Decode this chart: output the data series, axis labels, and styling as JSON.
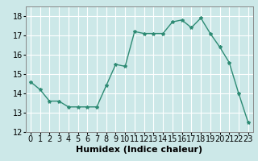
{
  "x": [
    0,
    1,
    2,
    3,
    4,
    5,
    6,
    7,
    8,
    9,
    10,
    11,
    12,
    13,
    14,
    15,
    16,
    17,
    18,
    19,
    20,
    21,
    22,
    23
  ],
  "y": [
    14.6,
    14.2,
    13.6,
    13.6,
    13.3,
    13.3,
    13.3,
    13.3,
    14.4,
    15.5,
    15.4,
    17.2,
    17.1,
    17.1,
    17.1,
    17.7,
    17.8,
    17.4,
    17.9,
    17.1,
    16.4,
    15.6,
    14.0,
    12.5
  ],
  "line_color": "#2e8b74",
  "marker": "*",
  "marker_size": 3,
  "bg_color": "#cce8e8",
  "grid_color": "#ffffff",
  "xlabel": "Humidex (Indice chaleur)",
  "xlabel_fontsize": 8,
  "xlim": [
    -0.5,
    23.5
  ],
  "ylim": [
    12,
    18.5
  ],
  "yticks": [
    12,
    13,
    14,
    15,
    16,
    17,
    18
  ],
  "xticks": [
    0,
    1,
    2,
    3,
    4,
    5,
    6,
    7,
    8,
    9,
    10,
    11,
    12,
    13,
    14,
    15,
    16,
    17,
    18,
    19,
    20,
    21,
    22,
    23
  ],
  "tick_fontsize": 7
}
